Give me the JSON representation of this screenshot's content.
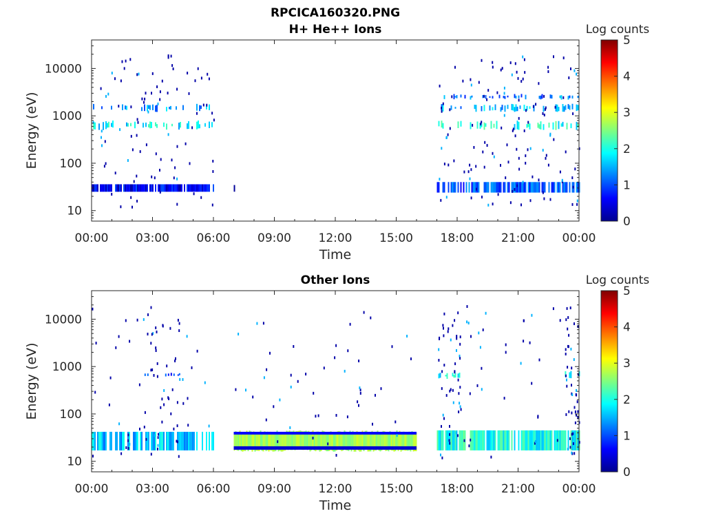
{
  "figure": {
    "title_line1": "RPCICA160320.PNG",
    "panel1_title": "H+ He++ Ions",
    "panel2_title": "Other Ions"
  },
  "chart_data": [
    {
      "type": "heatmap",
      "title": "H+ He++ Ions",
      "xlabel": "Time",
      "ylabel": "Energy (eV)",
      "x_ticks": [
        "00:00",
        "03:00",
        "06:00",
        "09:00",
        "12:00",
        "15:00",
        "18:00",
        "21:00",
        "00:00"
      ],
      "xlim_hours": [
        0,
        24
      ],
      "y_scale": "log",
      "y_ticks": [
        "10",
        "100",
        "1000",
        "10000"
      ],
      "ylim": [
        6,
        40000
      ],
      "colorbar": {
        "label": "Log counts",
        "ticks": [
          "0",
          "1",
          "2",
          "3",
          "4",
          "5"
        ],
        "range": [
          0,
          5
        ],
        "colormap": "jet"
      },
      "regions": [
        {
          "t_start": 0.0,
          "t_end": 6.0,
          "energy_min": 25,
          "energy_max": 36,
          "log_counts": 0.6,
          "note": "dense band"
        },
        {
          "t_start": 0.0,
          "t_end": 6.0,
          "energy_min": 500,
          "energy_max": 800,
          "log_counts": 1.8,
          "note": "sparse band"
        },
        {
          "t_start": 0.0,
          "t_end": 6.0,
          "energy_min": 1200,
          "energy_max": 1800,
          "log_counts": 1.4,
          "note": "sparse band"
        },
        {
          "t_start": 7.0,
          "t_end": 7.1,
          "energy_min": 20,
          "energy_max": 36,
          "log_counts": 0.5
        },
        {
          "t_start": 17.0,
          "t_end": 24.0,
          "energy_min": 24,
          "energy_max": 40,
          "log_counts": 1.0,
          "note": "dense band"
        },
        {
          "t_start": 17.0,
          "t_end": 24.0,
          "energy_min": 500,
          "energy_max": 800,
          "log_counts": 2.0,
          "note": "sparse band"
        },
        {
          "t_start": 17.0,
          "t_end": 24.0,
          "energy_min": 1200,
          "energy_max": 1800,
          "log_counts": 1.5,
          "note": "sparse band"
        },
        {
          "t_start": 17.0,
          "t_end": 24.0,
          "energy_min": 2200,
          "energy_max": 2900,
          "log_counts": 1.2,
          "note": "sparse band"
        }
      ]
    },
    {
      "type": "heatmap",
      "title": "Other Ions",
      "xlabel": "Time",
      "ylabel": "Energy (eV)",
      "x_ticks": [
        "00:00",
        "03:00",
        "06:00",
        "09:00",
        "12:00",
        "15:00",
        "18:00",
        "21:00",
        "00:00"
      ],
      "xlim_hours": [
        0,
        24
      ],
      "y_scale": "log",
      "y_ticks": [
        "10",
        "100",
        "1000",
        "10000"
      ],
      "ylim": [
        6,
        40000
      ],
      "colorbar": {
        "label": "Log counts",
        "ticks": [
          "0",
          "1",
          "2",
          "3",
          "4",
          "5"
        ],
        "range": [
          0,
          5
        ],
        "colormap": "jet"
      },
      "regions": [
        {
          "t_start": 0.0,
          "t_end": 6.0,
          "energy_min": 17,
          "energy_max": 42,
          "log_counts": 1.6,
          "note": "dense band"
        },
        {
          "t_start": 2.4,
          "t_end": 4.5,
          "energy_min": 600,
          "energy_max": 750,
          "log_counts": 1.0,
          "note": "sparse"
        },
        {
          "t_start": 7.0,
          "t_end": 16.0,
          "energy_min": 17,
          "energy_max": 42,
          "log_counts": 2.7,
          "note": "continuous band"
        },
        {
          "t_start": 17.0,
          "t_end": 24.0,
          "energy_min": 17,
          "energy_max": 45,
          "log_counts": 2.0,
          "note": "dense band"
        },
        {
          "t_start": 17.0,
          "t_end": 18.2,
          "energy_min": 550,
          "energy_max": 750,
          "log_counts": 1.8
        },
        {
          "t_start": 23.3,
          "t_end": 24.0,
          "energy_min": 550,
          "energy_max": 900,
          "log_counts": 2.0
        }
      ]
    }
  ]
}
